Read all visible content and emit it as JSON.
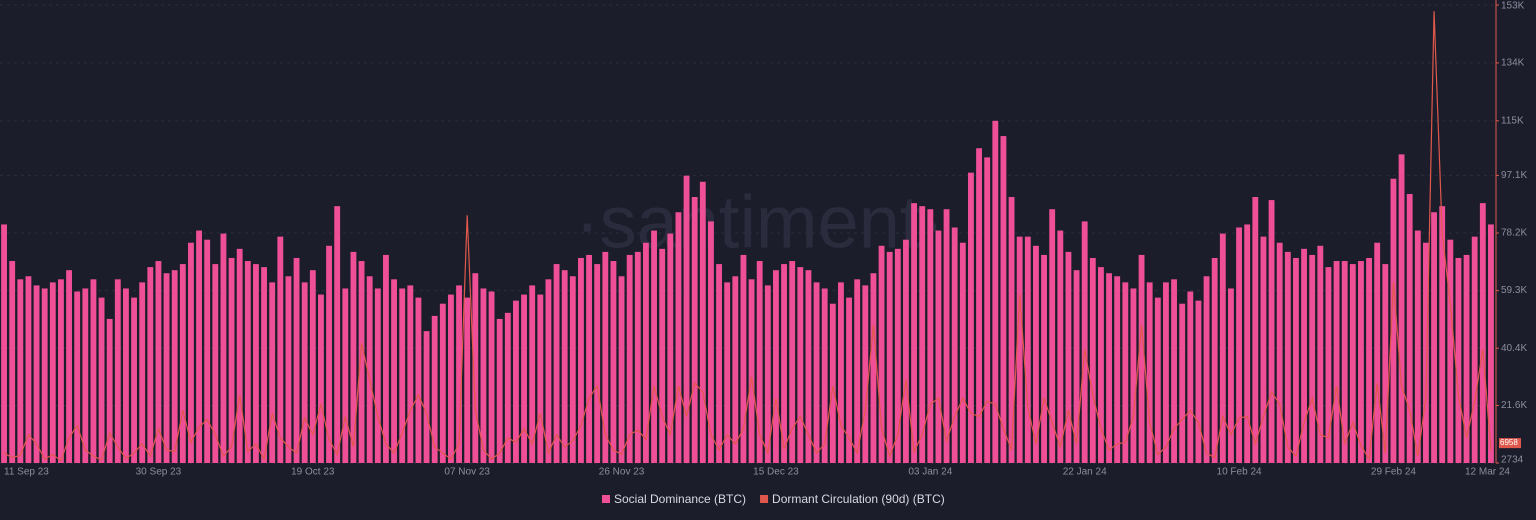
{
  "chart_data": {
    "type": "bar",
    "watermark": "·santiment·",
    "categories": [
      "11 Sep 23",
      null,
      null,
      null,
      null,
      null,
      null,
      null,
      null,
      null,
      null,
      null,
      null,
      null,
      null,
      null,
      null,
      null,
      null,
      "30 Sep 23",
      null,
      null,
      null,
      null,
      null,
      null,
      null,
      null,
      null,
      null,
      null,
      null,
      null,
      null,
      null,
      null,
      null,
      null,
      "19 Oct 23",
      null,
      null,
      null,
      null,
      null,
      null,
      null,
      null,
      null,
      null,
      null,
      null,
      null,
      null,
      null,
      null,
      null,
      null,
      "07 Nov 23",
      null,
      null,
      null,
      null,
      null,
      null,
      null,
      null,
      null,
      null,
      null,
      null,
      null,
      null,
      null,
      null,
      null,
      null,
      "26 Nov 23",
      null,
      null,
      null,
      null,
      null,
      null,
      null,
      null,
      null,
      null,
      null,
      null,
      null,
      null,
      null,
      null,
      null,
      null,
      "15 Dec 23",
      null,
      null,
      null,
      null,
      null,
      null,
      null,
      null,
      null,
      null,
      null,
      null,
      null,
      null,
      null,
      null,
      null,
      null,
      "03 Jan 24",
      null,
      null,
      null,
      null,
      null,
      null,
      null,
      null,
      null,
      null,
      null,
      null,
      null,
      null,
      null,
      null,
      null,
      null,
      "22 Jan 24",
      null,
      null,
      null,
      null,
      null,
      null,
      null,
      null,
      null,
      null,
      null,
      null,
      null,
      null,
      null,
      null,
      null,
      null,
      "10 Feb 24",
      null,
      null,
      null,
      null,
      null,
      null,
      null,
      null,
      null,
      null,
      null,
      null,
      null,
      null,
      null,
      null,
      null,
      null,
      "29 Feb 24",
      null,
      null,
      null,
      null,
      null,
      null,
      null,
      null,
      null,
      null,
      null,
      "12 Mar 24"
    ],
    "series": [
      {
        "name": "Social Dominance (BTC)",
        "type": "bar",
        "color": "#ee4f97",
        "values": [
          81000,
          69000,
          63000,
          64000,
          61000,
          60000,
          62000,
          63000,
          66000,
          59000,
          60000,
          63000,
          57000,
          50000,
          63000,
          60000,
          57000,
          62000,
          67000,
          69000,
          65000,
          66000,
          68000,
          75000,
          79000,
          76000,
          68000,
          78000,
          70000,
          73000,
          69000,
          68000,
          67000,
          62000,
          77000,
          64000,
          70000,
          62000,
          66000,
          58000,
          74000,
          87000,
          60000,
          72000,
          69000,
          64000,
          60000,
          71000,
          63000,
          60000,
          61000,
          57000,
          46000,
          51000,
          55000,
          58000,
          61000,
          57000,
          65000,
          60000,
          59000,
          50000,
          52000,
          56000,
          58000,
          61000,
          58000,
          63000,
          68000,
          66000,
          64000,
          70000,
          71000,
          68000,
          72000,
          69000,
          64000,
          71000,
          72000,
          75000,
          79000,
          73000,
          78000,
          85000,
          97000,
          90000,
          95000,
          82000,
          68000,
          62000,
          64000,
          71000,
          63000,
          69000,
          61000,
          66000,
          68000,
          69000,
          67000,
          66000,
          62000,
          60000,
          55000,
          62000,
          57000,
          63000,
          61000,
          65000,
          74000,
          72000,
          73000,
          76000,
          88000,
          87000,
          86000,
          79000,
          86000,
          80000,
          75000,
          98000,
          106000,
          103000,
          115000,
          110000,
          90000,
          77000,
          77000,
          74000,
          71000,
          86000,
          79000,
          72000,
          66000,
          82000,
          70000,
          67000,
          65000,
          64000,
          62000,
          60000,
          71000,
          62000,
          57000,
          62000,
          63000,
          55000,
          59000,
          56000,
          64000,
          70000,
          78000,
          60000,
          80000,
          81000,
          90000,
          77000,
          89000,
          75000,
          72000,
          70000,
          73000,
          71000,
          74000,
          67000,
          69000,
          69000,
          68000,
          69000,
          70000,
          75000,
          68000,
          96000,
          104000,
          91000,
          79000,
          75000,
          85000,
          87000,
          76000,
          70000,
          71000,
          77000,
          88000,
          81000
        ]
      },
      {
        "name": "Dormant Circulation (90d) (BTC)",
        "type": "line",
        "color": "#e0584c",
        "values": [
          6000,
          4500,
          5200,
          12000,
          9000,
          4000,
          5500,
          3500,
          11000,
          15000,
          7000,
          5000,
          3800,
          12500,
          8000,
          4200,
          6000,
          9000,
          5000,
          14000,
          7000,
          6500,
          20000,
          9500,
          14500,
          17000,
          12000,
          5000,
          8000,
          25000,
          6500,
          9000,
          4000,
          19000,
          11000,
          8000,
          6000,
          17500,
          12000,
          22000,
          10500,
          5500,
          18000,
          8000,
          42000,
          30000,
          18000,
          9000,
          6000,
          12500,
          20000,
          25000,
          19000,
          8000,
          6000,
          4000,
          9000,
          84000,
          20000,
          7000,
          4000,
          6000,
          11000,
          9500,
          14000,
          9000,
          19000,
          6000,
          12000,
          8000,
          10000,
          15000,
          24000,
          28000,
          12000,
          7000,
          5500,
          12000,
          13500,
          10500,
          28000,
          18000,
          12000,
          28000,
          18000,
          29000,
          26000,
          12000,
          7000,
          12000,
          9000,
          14000,
          31000,
          12000,
          6000,
          24000,
          7500,
          14000,
          18000,
          12000,
          6000,
          9000,
          28000,
          15000,
          11000,
          6000,
          20000,
          48000,
          14000,
          5000,
          12000,
          30000,
          6500,
          12000,
          22000,
          24000,
          10000,
          18000,
          24000,
          19000,
          18000,
          23000,
          22000,
          14000,
          7000,
          58000,
          21000,
          9000,
          24000,
          16000,
          8000,
          20000,
          9000,
          40000,
          25000,
          14000,
          7000,
          9000,
          9500,
          18000,
          48000,
          16000,
          5500,
          8000,
          14000,
          17000,
          20000,
          16000,
          6000,
          4500,
          18000,
          12000,
          17500,
          18000,
          9000,
          18000,
          26000,
          22000,
          8000,
          5000,
          16000,
          24000,
          12000,
          11000,
          28000,
          9000,
          16000,
          8500,
          4000,
          29000,
          6000,
          62000,
          28000,
          20000,
          5000,
          24000,
          151000,
          78000,
          55000,
          25000,
          11000,
          23000,
          40000,
          6958
        ]
      }
    ],
    "ylim": [
      2734,
      153000
    ],
    "yticks": [
      2734,
      {
        "value": 21600,
        "label": "21.6K"
      },
      {
        "value": 40400,
        "label": "40.4K"
      },
      {
        "value": 59300,
        "label": "59.3K"
      },
      {
        "value": 78200,
        "label": "78.2K"
      },
      {
        "value": 97100,
        "label": "97.1K"
      },
      {
        "value": 115000,
        "label": "115K"
      },
      {
        "value": 134000,
        "label": "134K"
      },
      {
        "value": 153000,
        "label": "153K"
      }
    ],
    "grid": true,
    "legend": "bottom"
  }
}
